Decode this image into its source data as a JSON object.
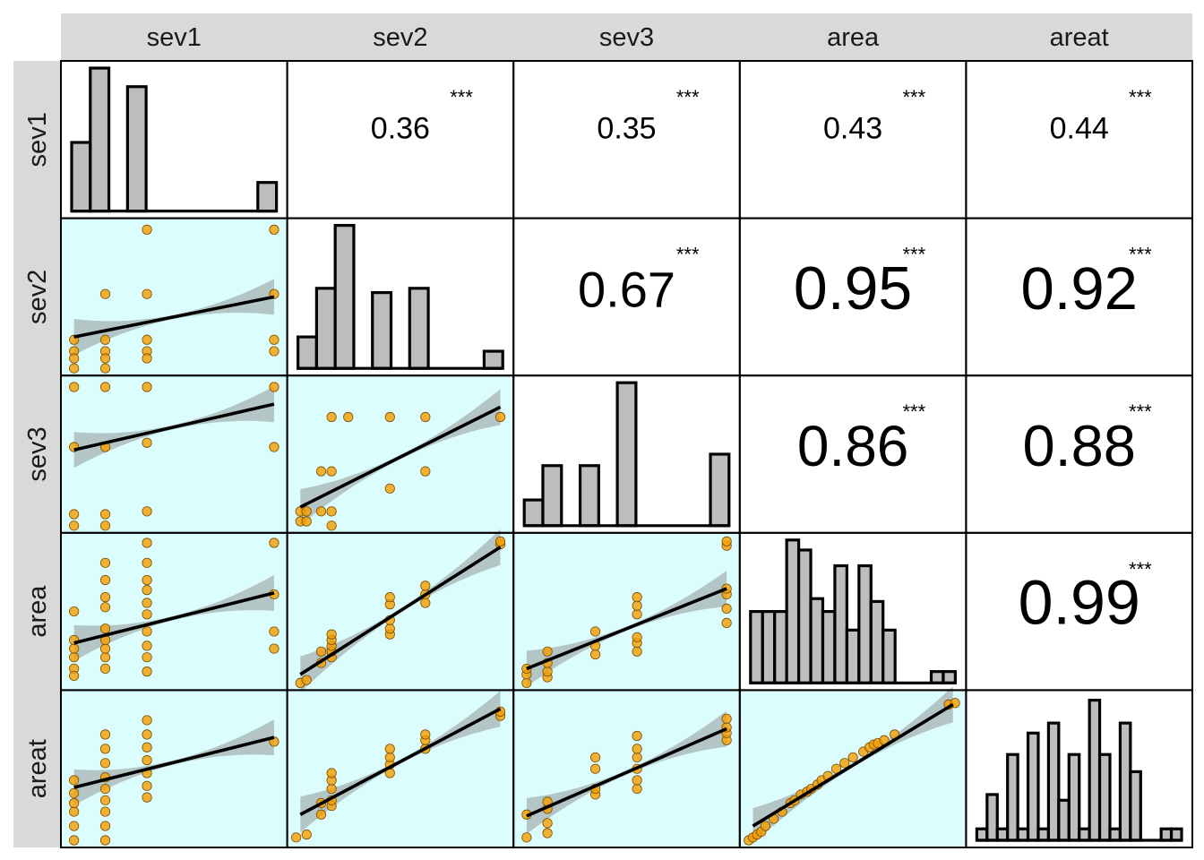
{
  "chart_data": {
    "type": "scatter",
    "variables": [
      "sev1",
      "sev2",
      "sev3",
      "area",
      "areat"
    ],
    "significance_marker": "***",
    "correlations": [
      {
        "row": "sev1",
        "col": "sev2",
        "value": "0.36"
      },
      {
        "row": "sev1",
        "col": "sev3",
        "value": "0.35"
      },
      {
        "row": "sev1",
        "col": "area",
        "value": "0.43"
      },
      {
        "row": "sev1",
        "col": "areat",
        "value": "0.44"
      },
      {
        "row": "sev2",
        "col": "sev3",
        "value": "0.67"
      },
      {
        "row": "sev2",
        "col": "area",
        "value": "0.95"
      },
      {
        "row": "sev2",
        "col": "areat",
        "value": "0.92"
      },
      {
        "row": "sev3",
        "col": "area",
        "value": "0.86"
      },
      {
        "row": "sev3",
        "col": "areat",
        "value": "0.88"
      },
      {
        "row": "area",
        "col": "areat",
        "value": "0.99"
      }
    ],
    "histograms": {
      "sev1": [
        0.48,
        1.0,
        0,
        0.87,
        0,
        0,
        0,
        0,
        0,
        0,
        0.2
      ],
      "sev2": [
        0.22,
        0.56,
        1.0,
        0,
        0.53,
        0,
        0.56,
        0,
        0,
        0,
        0.12
      ],
      "sev3": [
        0.18,
        0.42,
        0,
        0.42,
        0,
        1.0,
        0,
        0,
        0,
        0,
        0.5
      ],
      "area": [
        0.5,
        0.5,
        0.5,
        1.0,
        0.93,
        0.59,
        0.5,
        0.82,
        0.37,
        0.82,
        0.57,
        0.37,
        0,
        0,
        0,
        0.08,
        0.08
      ],
      "areat": [
        0.08,
        0.32,
        0.08,
        0.6,
        0.08,
        0.75,
        0.08,
        0.82,
        0.28,
        0.6,
        0.08,
        0.98,
        0.6,
        0.08,
        0.82,
        0.48,
        0,
        0,
        0.08,
        0.08
      ]
    },
    "scatter": [
      {
        "x": "sev1",
        "y": "sev2",
        "fit": [
          0.02,
          0.22,
          0.98,
          0.5
        ],
        "points": [
          [
            0.02,
            0.2
          ],
          [
            0.02,
            0.12
          ],
          [
            0.02,
            0.07
          ],
          [
            0.02,
            0.0
          ],
          [
            0.17,
            0.2
          ],
          [
            0.17,
            0.12
          ],
          [
            0.17,
            0.07
          ],
          [
            0.17,
            0.0
          ],
          [
            0.17,
            0.52
          ],
          [
            0.37,
            0.2
          ],
          [
            0.37,
            0.12
          ],
          [
            0.37,
            0.52
          ],
          [
            0.37,
            0.07
          ],
          [
            0.37,
            0.97
          ],
          [
            0.98,
            0.97
          ],
          [
            0.98,
            0.52
          ],
          [
            0.98,
            0.2
          ],
          [
            0.98,
            0.12
          ]
        ]
      },
      {
        "x": "sev1",
        "y": "sev3",
        "fit": [
          0.02,
          0.53,
          0.98,
          0.85
        ],
        "points": [
          [
            0.02,
            0.0
          ],
          [
            0.02,
            0.08
          ],
          [
            0.02,
            0.55
          ],
          [
            0.02,
            0.97
          ],
          [
            0.17,
            0.0
          ],
          [
            0.17,
            0.08
          ],
          [
            0.17,
            0.55
          ],
          [
            0.17,
            0.97
          ],
          [
            0.37,
            0.1
          ],
          [
            0.37,
            0.58
          ],
          [
            0.37,
            0.97
          ],
          [
            0.98,
            0.55
          ],
          [
            0.98,
            0.97
          ]
        ]
      },
      {
        "x": "sev1",
        "y": "area",
        "fit": [
          0.02,
          0.28,
          0.98,
          0.63
        ],
        "points": [
          [
            0.02,
            0.1
          ],
          [
            0.02,
            0.18
          ],
          [
            0.02,
            0.24
          ],
          [
            0.02,
            0.3
          ],
          [
            0.02,
            0.5
          ],
          [
            0.02,
            0.05
          ],
          [
            0.17,
            0.1
          ],
          [
            0.17,
            0.18
          ],
          [
            0.17,
            0.24
          ],
          [
            0.17,
            0.3
          ],
          [
            0.17,
            0.38
          ],
          [
            0.17,
            0.53
          ],
          [
            0.17,
            0.6
          ],
          [
            0.17,
            0.72
          ],
          [
            0.17,
            0.84
          ],
          [
            0.37,
            0.08
          ],
          [
            0.37,
            0.18
          ],
          [
            0.37,
            0.26
          ],
          [
            0.37,
            0.36
          ],
          [
            0.37,
            0.48
          ],
          [
            0.37,
            0.56
          ],
          [
            0.37,
            0.65
          ],
          [
            0.37,
            0.72
          ],
          [
            0.37,
            0.84
          ],
          [
            0.37,
            0.98
          ],
          [
            0.98,
            0.24
          ],
          [
            0.98,
            0.36
          ],
          [
            0.98,
            0.62
          ],
          [
            0.98,
            0.98
          ]
        ]
      },
      {
        "x": "sev1",
        "y": "areat",
        "fit": [
          0.02,
          0.37,
          0.98,
          0.72
        ],
        "points": [
          [
            0.02,
            0.0
          ],
          [
            0.02,
            0.1
          ],
          [
            0.02,
            0.2
          ],
          [
            0.02,
            0.26
          ],
          [
            0.02,
            0.33
          ],
          [
            0.02,
            0.42
          ],
          [
            0.17,
            0.0
          ],
          [
            0.17,
            0.1
          ],
          [
            0.17,
            0.2
          ],
          [
            0.17,
            0.28
          ],
          [
            0.17,
            0.36
          ],
          [
            0.17,
            0.44
          ],
          [
            0.17,
            0.54
          ],
          [
            0.17,
            0.64
          ],
          [
            0.17,
            0.74
          ],
          [
            0.37,
            0.3
          ],
          [
            0.37,
            0.38
          ],
          [
            0.37,
            0.47
          ],
          [
            0.37,
            0.56
          ],
          [
            0.37,
            0.65
          ],
          [
            0.37,
            0.74
          ],
          [
            0.37,
            0.84
          ],
          [
            0.98,
            0.69
          ]
        ]
      },
      {
        "x": "sev2",
        "y": "sev3",
        "fit": [
          0.02,
          0.13,
          0.98,
          0.83
        ],
        "points": [
          [
            0.02,
            0.03
          ],
          [
            0.02,
            0.1
          ],
          [
            0.05,
            0.03
          ],
          [
            0.05,
            0.1
          ],
          [
            0.12,
            0.1
          ],
          [
            0.12,
            0.38
          ],
          [
            0.17,
            0.0
          ],
          [
            0.17,
            0.1
          ],
          [
            0.17,
            0.38
          ],
          [
            0.17,
            0.76
          ],
          [
            0.25,
            0.76
          ],
          [
            0.45,
            0.26
          ],
          [
            0.45,
            0.76
          ],
          [
            0.62,
            0.38
          ],
          [
            0.62,
            0.76
          ],
          [
            0.98,
            0.76
          ]
        ]
      },
      {
        "x": "sev2",
        "y": "area",
        "fit": [
          0.02,
          0.06,
          0.98,
          0.95
        ],
        "points": [
          [
            0.02,
            0.0
          ],
          [
            0.05,
            0.02
          ],
          [
            0.12,
            0.14
          ],
          [
            0.12,
            0.22
          ],
          [
            0.17,
            0.18
          ],
          [
            0.17,
            0.22
          ],
          [
            0.17,
            0.26
          ],
          [
            0.17,
            0.3
          ],
          [
            0.17,
            0.34
          ],
          [
            0.45,
            0.34
          ],
          [
            0.45,
            0.38
          ],
          [
            0.45,
            0.44
          ],
          [
            0.45,
            0.55
          ],
          [
            0.45,
            0.6
          ],
          [
            0.62,
            0.56
          ],
          [
            0.62,
            0.62
          ],
          [
            0.62,
            0.68
          ],
          [
            0.98,
            0.97
          ],
          [
            0.98,
            0.99
          ]
        ]
      },
      {
        "x": "sev2",
        "y": "areat",
        "fit": [
          0.02,
          0.18,
          0.98,
          0.92
        ],
        "points": [
          [
            0.0,
            0.02
          ],
          [
            0.05,
            0.04
          ],
          [
            0.12,
            0.18
          ],
          [
            0.12,
            0.26
          ],
          [
            0.17,
            0.24
          ],
          [
            0.17,
            0.28
          ],
          [
            0.17,
            0.36
          ],
          [
            0.17,
            0.42
          ],
          [
            0.17,
            0.47
          ],
          [
            0.45,
            0.47
          ],
          [
            0.45,
            0.53
          ],
          [
            0.45,
            0.58
          ],
          [
            0.45,
            0.64
          ],
          [
            0.62,
            0.64
          ],
          [
            0.62,
            0.7
          ],
          [
            0.62,
            0.74
          ],
          [
            0.98,
            0.87
          ],
          [
            0.98,
            0.9
          ]
        ]
      },
      {
        "x": "sev3",
        "y": "area",
        "fit": [
          0.02,
          0.1,
          0.98,
          0.66
        ],
        "points": [
          [
            0.02,
            0.0
          ],
          [
            0.02,
            0.06
          ],
          [
            0.02,
            0.1
          ],
          [
            0.12,
            0.04
          ],
          [
            0.12,
            0.08
          ],
          [
            0.12,
            0.14
          ],
          [
            0.12,
            0.22
          ],
          [
            0.35,
            0.2
          ],
          [
            0.35,
            0.26
          ],
          [
            0.35,
            0.36
          ],
          [
            0.55,
            0.22
          ],
          [
            0.55,
            0.28
          ],
          [
            0.55,
            0.32
          ],
          [
            0.55,
            0.48
          ],
          [
            0.55,
            0.54
          ],
          [
            0.55,
            0.6
          ],
          [
            0.98,
            0.42
          ],
          [
            0.98,
            0.52
          ],
          [
            0.98,
            0.62
          ],
          [
            0.98,
            0.66
          ],
          [
            0.98,
            0.96
          ],
          [
            0.98,
            0.99
          ]
        ]
      },
      {
        "x": "sev3",
        "y": "areat",
        "fit": [
          0.02,
          0.17,
          0.98,
          0.78
        ],
        "points": [
          [
            0.02,
            0.02
          ],
          [
            0.02,
            0.18
          ],
          [
            0.12,
            0.05
          ],
          [
            0.12,
            0.12
          ],
          [
            0.12,
            0.22
          ],
          [
            0.12,
            0.27
          ],
          [
            0.35,
            0.32
          ],
          [
            0.35,
            0.36
          ],
          [
            0.35,
            0.5
          ],
          [
            0.35,
            0.58
          ],
          [
            0.55,
            0.36
          ],
          [
            0.55,
            0.42
          ],
          [
            0.55,
            0.5
          ],
          [
            0.55,
            0.58
          ],
          [
            0.55,
            0.64
          ],
          [
            0.55,
            0.73
          ],
          [
            0.98,
            0.7
          ],
          [
            0.98,
            0.75
          ],
          [
            0.98,
            0.79
          ],
          [
            0.98,
            0.85
          ]
        ]
      },
      {
        "x": "area",
        "y": "areat",
        "fit": [
          0.02,
          0.1,
          0.98,
          0.95
        ],
        "points": [
          [
            0.0,
            0.0
          ],
          [
            0.02,
            0.02
          ],
          [
            0.04,
            0.04
          ],
          [
            0.06,
            0.06
          ],
          [
            0.08,
            0.1
          ],
          [
            0.12,
            0.15
          ],
          [
            0.16,
            0.2
          ],
          [
            0.2,
            0.26
          ],
          [
            0.22,
            0.28
          ],
          [
            0.25,
            0.32
          ],
          [
            0.28,
            0.34
          ],
          [
            0.3,
            0.36
          ],
          [
            0.33,
            0.39
          ],
          [
            0.35,
            0.42
          ],
          [
            0.38,
            0.45
          ],
          [
            0.42,
            0.5
          ],
          [
            0.46,
            0.54
          ],
          [
            0.5,
            0.58
          ],
          [
            0.55,
            0.62
          ],
          [
            0.58,
            0.65
          ],
          [
            0.6,
            0.67
          ],
          [
            0.62,
            0.68
          ],
          [
            0.65,
            0.7
          ],
          [
            0.7,
            0.74
          ],
          [
            0.96,
            0.95
          ],
          [
            0.99,
            0.96
          ]
        ]
      }
    ],
    "colors": {
      "strip_bg": "#d9d9d9",
      "scatter_bg": "#dbfdfd",
      "point_fill": "#f59e00",
      "point_edge": "#7a4e00",
      "ci_band": "#9fa8a8",
      "fit_line": "#000000",
      "bar_fill": "#bdbdbd",
      "bar_edge": "#000000"
    },
    "xlabel": "",
    "ylabel": ""
  }
}
